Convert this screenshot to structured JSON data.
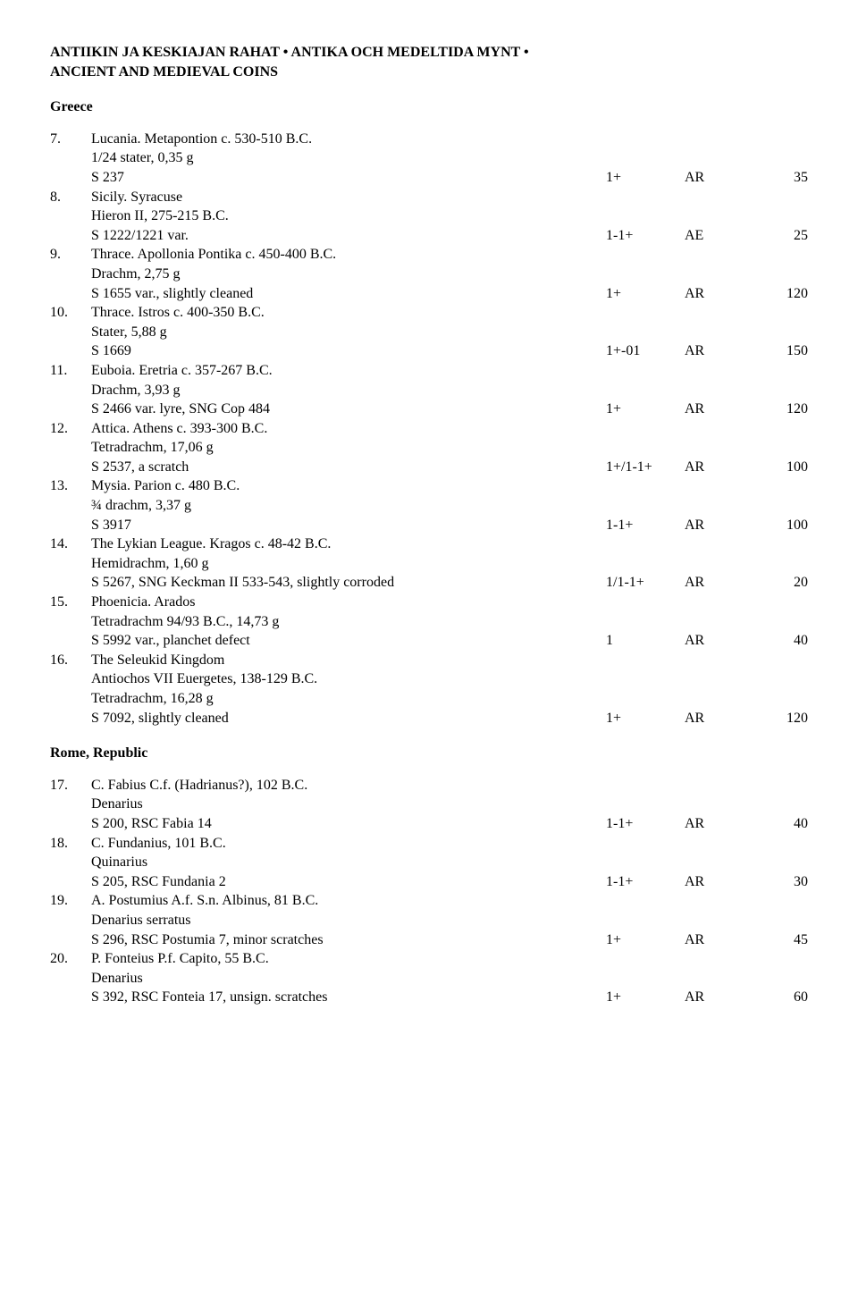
{
  "header": {
    "line1": "ANTIIKIN JA KESKIAJAN RAHAT  •  ANTIKA OCH MEDELTIDA MYNT  •",
    "line2": "ANCIENT AND MEDIEVAL COINS"
  },
  "sections": [
    {
      "title": "Greece",
      "lots": [
        {
          "num": "7.",
          "title": "Lucania. Metapontion c. 530-510 B.C.",
          "sub": "1/24 stater, 0,35 g",
          "ref": "S 237",
          "grade": "1+",
          "metal": "AR",
          "price": "35"
        },
        {
          "num": "8.",
          "title": "Sicily. Syracuse",
          "sub": "Hieron II, 275-215 B.C.",
          "ref": "S 1222/1221 var.",
          "grade": "1-1+",
          "metal": "AE",
          "price": "25"
        },
        {
          "num": "9.",
          "title": "Thrace. Apollonia Pontika c. 450-400 B.C.",
          "sub": "Drachm, 2,75 g",
          "ref": "S 1655 var., slightly cleaned",
          "grade": "1+",
          "metal": "AR",
          "price": "120"
        },
        {
          "num": "10.",
          "title": "Thrace. Istros c. 400-350 B.C.",
          "sub": "Stater, 5,88 g",
          "ref": "S 1669",
          "grade": "1+-01",
          "metal": "AR",
          "price": "150"
        },
        {
          "num": "11.",
          "title": "Euboia. Eretria c. 357-267 B.C.",
          "sub": "Drachm, 3,93 g",
          "ref": "S 2466 var. lyre, SNG Cop 484",
          "grade": "1+",
          "metal": "AR",
          "price": "120"
        },
        {
          "num": "12.",
          "title": "Attica. Athens c. 393-300 B.C.",
          "sub": "Tetradrachm, 17,06 g",
          "ref": "S 2537, a scratch",
          "grade": "1+/1-1+",
          "metal": "AR",
          "price": "100"
        },
        {
          "num": "13.",
          "title": "Mysia. Parion c. 480 B.C.",
          "sub": "¾ drachm, 3,37 g",
          "ref": "S 3917",
          "grade": "1-1+",
          "metal": "AR",
          "price": "100"
        },
        {
          "num": "14.",
          "title": "The Lykian League. Kragos c. 48-42 B.C.",
          "sub": "Hemidrachm, 1,60 g",
          "ref": "S 5267, SNG Keckman II 533-543, slightly corroded",
          "grade": "1/1-1+",
          "metal": "AR",
          "price": "20"
        },
        {
          "num": "15.",
          "title": "Phoenicia. Arados",
          "sub": "Tetradrachm 94/93 B.C., 14,73 g",
          "ref": "S 5992 var., planchet defect",
          "grade": "1",
          "metal": "AR",
          "price": "40"
        },
        {
          "num": "16.",
          "title": "The Seleukid Kingdom",
          "sub": "Antiochos VII Euergetes, 138-129 B.C.",
          "sub2": "Tetradrachm, 16,28 g",
          "ref": "S 7092, slightly cleaned",
          "grade": "1+",
          "metal": "AR",
          "price": "120"
        }
      ]
    },
    {
      "title": "Rome, Republic",
      "lots": [
        {
          "num": "17.",
          "title": "C. Fabius C.f. (Hadrianus?), 102 B.C.",
          "sub": "Denarius",
          "ref": "S 200, RSC Fabia 14",
          "grade": "1-1+",
          "metal": "AR",
          "price": "40"
        },
        {
          "num": "18.",
          "title": "C. Fundanius, 101 B.C.",
          "sub": "Quinarius",
          "ref": "S 205, RSC Fundania 2",
          "grade": "1-1+",
          "metal": "AR",
          "price": "30"
        },
        {
          "num": "19.",
          "title": "A. Postumius A.f. S.n. Albinus, 81 B.C.",
          "sub": "Denarius serratus",
          "ref": "S 296, RSC Postumia 7, minor scratches",
          "grade": "1+",
          "metal": "AR",
          "price": "45"
        },
        {
          "num": "20.",
          "title": "P. Fonteius P.f. Capito, 55 B.C.",
          "sub": "Denarius",
          "ref": "S 392, RSC Fonteia 17, unsign. scratches",
          "grade": "1+",
          "metal": "AR",
          "price": "60"
        }
      ]
    }
  ]
}
